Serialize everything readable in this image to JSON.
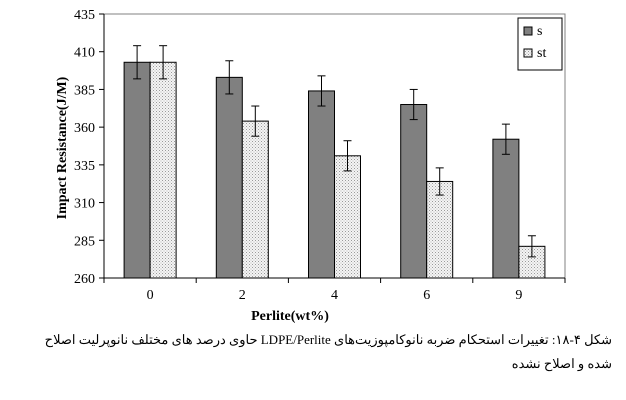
{
  "chart_data": {
    "type": "bar",
    "xlabel": "Perlite(wt%)",
    "ylabel": "Impact Resistance(J/M)",
    "categories": [
      "0",
      "2",
      "4",
      "6",
      "9"
    ],
    "ylim": [
      260,
      435
    ],
    "yticks": [
      260,
      285,
      310,
      335,
      360,
      385,
      410,
      435
    ],
    "grid": false,
    "legend_position": "top-right",
    "series": [
      {
        "name": "s",
        "values": [
          403,
          393,
          384,
          375,
          352
        ],
        "errors": [
          11,
          11,
          10,
          10,
          10
        ],
        "color": "#808080",
        "pattern": "solid"
      },
      {
        "name": "st",
        "values": [
          403,
          364,
          341,
          324,
          281
        ],
        "errors": [
          11,
          10,
          10,
          9,
          7
        ],
        "color": "#f2f2f2",
        "pattern": "dotted"
      }
    ]
  },
  "caption": "شکل ۴-۱۸: تغییرات استحکام ضربه  نانوکامپوزیت‌های LDPE/Perlite حاوی درصد های مختلف نانوپرلیت اصلاح شده و اصلاح نشده"
}
